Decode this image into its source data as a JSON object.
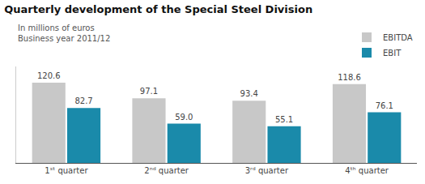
{
  "chart_data": {
    "type": "bar",
    "title": "Quarterly development of the Special Steel Division",
    "subtitle": [
      "In millions of euros",
      "Business year 2011/12"
    ],
    "categories": [
      "1ˢᵗ quarter",
      "2ⁿᵈ quarter",
      "3ʳᵈ quarter",
      "4ᵗʰ quarter"
    ],
    "series": [
      {
        "name": "EBITDA",
        "color": "#c8c8c8",
        "values": [
          120.6,
          97.1,
          93.4,
          118.6
        ]
      },
      {
        "name": "EBIT",
        "color": "#1a8aaa",
        "values": [
          82.7,
          59.0,
          55.1,
          76.1
        ],
        "value_labels": [
          "82.7",
          "59.0",
          "55.1",
          "76.1"
        ]
      }
    ],
    "ylim": [
      0,
      145
    ],
    "grid": false,
    "legend": "upper right",
    "data_labels": true,
    "tick_labels": "x"
  }
}
